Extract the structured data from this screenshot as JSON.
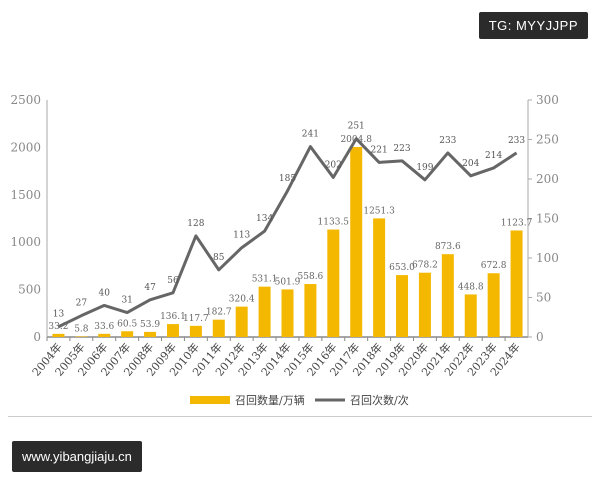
{
  "watermark_top": "TG: MYYJJPP",
  "watermark_bottom": "www.yibangjiaju.cn",
  "chart_data": {
    "type": "bar+line",
    "categories": [
      "2004年",
      "2005年",
      "2006年",
      "2007年",
      "2008年",
      "2009年",
      "2010年",
      "2011年",
      "2012年",
      "2013年",
      "2014年",
      "2015年",
      "2016年",
      "2017年",
      "2018年",
      "2019年",
      "2020年",
      "2021年",
      "2022年",
      "2023年",
      "2024年"
    ],
    "series": [
      {
        "name": "召回数量/万辆",
        "type": "bar",
        "axis": "left",
        "color": "#f5b800",
        "values": [
          33.2,
          5.8,
          33.6,
          60.5,
          53.9,
          136.1,
          117.7,
          182.7,
          320.4,
          531.1,
          501.9,
          558.6,
          1133.5,
          2004.8,
          1251.3,
          653.0,
          678.2,
          873.6,
          448.8,
          672.8,
          1123.7
        ],
        "labels": [
          "33.2",
          "5.8",
          "33.6",
          "60.5",
          "53.9",
          "136.1",
          "117.7",
          "182.7",
          "320.4",
          "531.1",
          "501.9",
          "558.6",
          "1133.5",
          "2004.8",
          "1251.3",
          "653.0",
          "678.2",
          "873.6",
          "448.8",
          "672.8",
          "1123.7"
        ]
      },
      {
        "name": "召回次数/次",
        "type": "line",
        "axis": "right",
        "color": "#666666",
        "values": [
          13,
          27,
          40,
          31,
          47,
          56,
          128,
          85,
          113,
          134,
          185,
          241,
          202,
          251,
          221,
          223,
          199,
          233,
          204,
          214,
          233
        ]
      }
    ],
    "left_axis": {
      "range": [
        0,
        2500
      ],
      "ticks": [
        "0",
        "500",
        "1000",
        "1500",
        "2000",
        "2500"
      ]
    },
    "right_axis": {
      "range": [
        0,
        300
      ],
      "ticks": [
        "0",
        "50",
        "100",
        "150",
        "200",
        "250",
        "300"
      ]
    },
    "legend_position": "bottom"
  }
}
